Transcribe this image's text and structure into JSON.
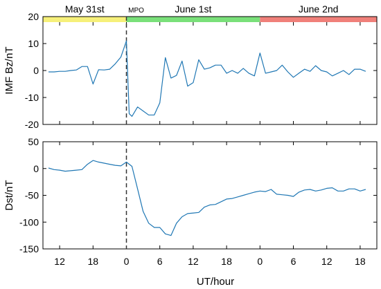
{
  "chart_data": [
    {
      "type": "line",
      "title": "",
      "ylabel": "IMF Bz/nT",
      "xlabel": "",
      "xlim": [
        -15,
        45
      ],
      "ylim": [
        -20,
        20
      ],
      "yticks": [
        20,
        10,
        0,
        -10,
        -20
      ],
      "xtick_labels": [
        "12",
        "18",
        "0",
        "6",
        "12",
        "18",
        "0",
        "6",
        "12",
        "18",
        "0"
      ],
      "marker_x": 0,
      "marker_label": "MPO",
      "day_bands": [
        {
          "label": "May 31st",
          "from": -15,
          "to": 0,
          "color": "#f6f07a"
        },
        {
          "label": "June 1st",
          "from": 0,
          "to": 24,
          "color": "#7ae07a"
        },
        {
          "label": "June 2nd",
          "from": 24,
          "to": 45,
          "color": "#f0807a"
        }
      ],
      "series": [
        {
          "name": "",
          "color": "#1f77b4",
          "x": [
            -14,
            -13,
            -12,
            -11,
            -10,
            -9,
            -8,
            -7,
            -6,
            -5,
            -4,
            -3,
            -2,
            -1,
            -0.5,
            0,
            0.5,
            1,
            2,
            3,
            4,
            5,
            6,
            7,
            8,
            9,
            10,
            11,
            12,
            13,
            14,
            15,
            16,
            17,
            18,
            19,
            20,
            21,
            22,
            23,
            24,
            25,
            26,
            27,
            28,
            29,
            30,
            31,
            32,
            33,
            34,
            35,
            36,
            37,
            38,
            39,
            40,
            41,
            42,
            43
          ],
          "y": [
            -0.5,
            -0.5,
            -0.3,
            -0.3,
            0,
            0.2,
            1.5,
            1.5,
            -5,
            0.3,
            0.2,
            0.5,
            2.5,
            5,
            8,
            11,
            -16,
            -17,
            -13.5,
            -15,
            -16.5,
            -16.5,
            -12,
            4.8,
            -2.8,
            -1.8,
            3.5,
            -5.8,
            -4.5,
            4,
            0.5,
            1,
            2,
            2,
            -1,
            0,
            -1,
            0.8,
            -1,
            -2,
            6.5,
            -1,
            -0.5,
            0,
            2,
            -0.5,
            -2.5,
            -1,
            0.5,
            -0.3,
            1.8,
            0,
            -0.5,
            -2,
            -1,
            0,
            -1.5,
            0.5,
            0.5,
            -0.3
          ]
        }
      ]
    },
    {
      "type": "line",
      "title": "",
      "ylabel": "Dst/nT",
      "xlabel": "UT/hour",
      "xlim": [
        -15,
        45
      ],
      "ylim": [
        -150,
        50
      ],
      "yticks": [
        50,
        0,
        -50,
        -100,
        -150
      ],
      "xtick_labels": [
        "12",
        "18",
        "0",
        "6",
        "12",
        "18",
        "0",
        "6",
        "12",
        "18",
        "0"
      ],
      "marker_x": 0,
      "series": [
        {
          "name": "",
          "color": "#1f77b4",
          "x": [
            -14,
            -13,
            -12,
            -11,
            -10,
            -9,
            -8,
            -7,
            -6,
            -5,
            -4,
            -3,
            -2,
            -1,
            0,
            1,
            2,
            3,
            4,
            5,
            6,
            7,
            8,
            9,
            10,
            11,
            12,
            13,
            14,
            15,
            16,
            17,
            18,
            19,
            20,
            21,
            22,
            23,
            24,
            25,
            26,
            27,
            28,
            29,
            30,
            31,
            32,
            33,
            34,
            35,
            36,
            37,
            38,
            39,
            40,
            41,
            42,
            43
          ],
          "y": [
            1,
            -2,
            -3,
            -5,
            -4,
            -3,
            -2,
            8,
            15,
            12,
            10,
            8,
            6,
            5,
            12,
            4,
            -38,
            -80,
            -102,
            -110,
            -110,
            -122,
            -125,
            -102,
            -90,
            -84,
            -83,
            -82,
            -72,
            -68,
            -67,
            -62,
            -57,
            -56,
            -53,
            -50,
            -47,
            -44,
            -42,
            -43,
            -39,
            -48,
            -49,
            -50,
            -52,
            -44,
            -40,
            -39,
            -42,
            -40,
            -37,
            -36,
            -42,
            -42,
            -38,
            -38,
            -42,
            -39
          ]
        }
      ]
    }
  ]
}
